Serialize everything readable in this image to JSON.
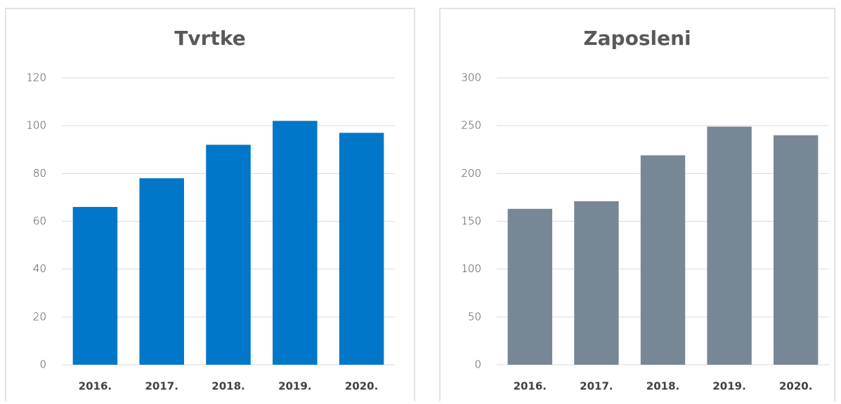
{
  "chart_data": [
    {
      "type": "bar",
      "title": "Tvrtke",
      "categories": [
        "2016.",
        "2017.",
        "2018.",
        "2019.",
        "2020."
      ],
      "values": [
        66,
        78,
        92,
        102,
        97
      ],
      "color": "#0077c8",
      "ylim": [
        0,
        120
      ],
      "yticks": [
        0,
        20,
        40,
        60,
        80,
        100,
        120
      ],
      "grid": true
    },
    {
      "type": "bar",
      "title": "Zaposleni",
      "categories": [
        "2016.",
        "2017.",
        "2018.",
        "2019.",
        "2020."
      ],
      "values": [
        163,
        171,
        219,
        249,
        240
      ],
      "color": "#788796",
      "ylim": [
        0,
        300
      ],
      "yticks": [
        0,
        50,
        100,
        150,
        200,
        250,
        300
      ],
      "grid": true
    }
  ]
}
